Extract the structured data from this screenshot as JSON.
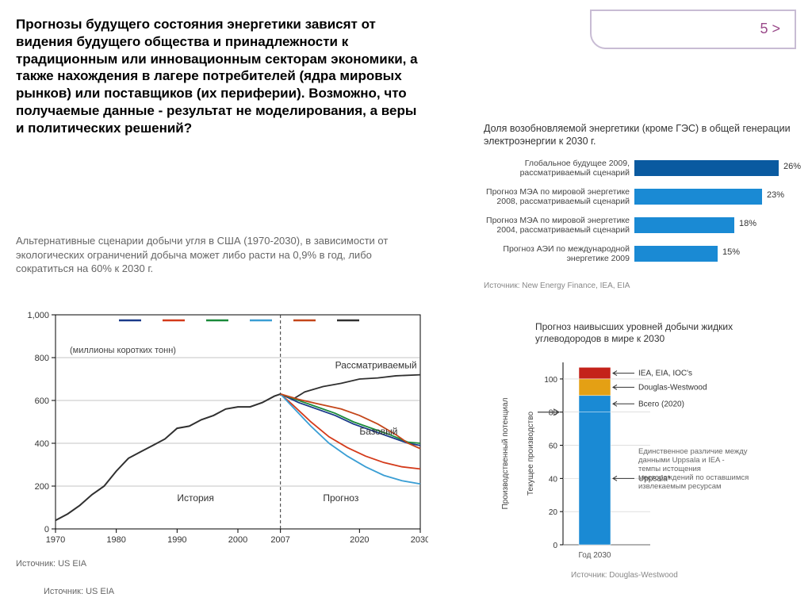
{
  "page_num": "5 >",
  "main_heading": "Прогнозы будущего состояния энергетики зависят от видения будущего общества и принадлежности к традиционным или инновационным секторам экономики, а также нахождения в лагере потребителей (ядра мировых рынков) или поставщиков (их периферии). Возможно, что получаемые данные - результат не моделирования, а веры и политических решений?",
  "subheading": "Альтернативные сценарии добычи угля в США (1970-2030), в зависимости от экологических ограничений добыча может либо расти на 0,9% в год, либо сократиться на 60% к 2030 г.",
  "source1": "Источник: US EIA",
  "source2": "Источник: US EIA",
  "linechart": {
    "type": "line",
    "xlim": [
      1970,
      2030
    ],
    "ylim": [
      0,
      1000
    ],
    "xticks": [
      1970,
      1980,
      1990,
      2000,
      2007,
      2020,
      2030
    ],
    "yticks": [
      0,
      200,
      400,
      600,
      800,
      1000
    ],
    "divider_x": 2007,
    "y_unit_label": "(миллионы коротких тонн)",
    "annotations": {
      "history": "История",
      "forecast": "Прогноз",
      "considered": "Рассматриваемый",
      "base": "Базовый"
    },
    "legend_colors": [
      "#1a3a8a",
      "#d43a1a",
      "#1a8a3a",
      "#3a9ed4",
      "#c4461a",
      "#303030"
    ],
    "grid_color": "#888",
    "axis_color": "#000",
    "history_series": {
      "color": "#303030",
      "points": [
        [
          1970,
          40
        ],
        [
          1972,
          70
        ],
        [
          1974,
          110
        ],
        [
          1976,
          160
        ],
        [
          1978,
          200
        ],
        [
          1980,
          270
        ],
        [
          1982,
          330
        ],
        [
          1984,
          360
        ],
        [
          1986,
          390
        ],
        [
          1988,
          420
        ],
        [
          1990,
          470
        ],
        [
          1992,
          480
        ],
        [
          1994,
          510
        ],
        [
          1996,
          530
        ],
        [
          1998,
          560
        ],
        [
          2000,
          570
        ],
        [
          2002,
          570
        ],
        [
          2004,
          590
        ],
        [
          2006,
          620
        ],
        [
          2007,
          630
        ]
      ]
    },
    "forecast_series": [
      {
        "color": "#303030",
        "points": [
          [
            2007,
            630
          ],
          [
            2009,
            605
          ],
          [
            2011,
            640
          ],
          [
            2014,
            665
          ],
          [
            2017,
            680
          ],
          [
            2020,
            700
          ],
          [
            2023,
            705
          ],
          [
            2026,
            715
          ],
          [
            2030,
            720
          ]
        ]
      },
      {
        "color": "#1a3a8a",
        "points": [
          [
            2007,
            630
          ],
          [
            2010,
            590
          ],
          [
            2013,
            560
          ],
          [
            2016,
            530
          ],
          [
            2019,
            490
          ],
          [
            2022,
            460
          ],
          [
            2025,
            430
          ],
          [
            2028,
            400
          ],
          [
            2030,
            390
          ]
        ]
      },
      {
        "color": "#1a8a3a",
        "points": [
          [
            2007,
            630
          ],
          [
            2010,
            600
          ],
          [
            2013,
            570
          ],
          [
            2016,
            540
          ],
          [
            2019,
            500
          ],
          [
            2022,
            470
          ],
          [
            2025,
            440
          ],
          [
            2028,
            405
          ],
          [
            2030,
            400
          ]
        ]
      },
      {
        "color": "#d43a1a",
        "points": [
          [
            2007,
            630
          ],
          [
            2009,
            580
          ],
          [
            2012,
            500
          ],
          [
            2015,
            430
          ],
          [
            2018,
            380
          ],
          [
            2021,
            340
          ],
          [
            2024,
            310
          ],
          [
            2027,
            290
          ],
          [
            2030,
            280
          ]
        ]
      },
      {
        "color": "#3a9ed4",
        "points": [
          [
            2007,
            630
          ],
          [
            2009,
            570
          ],
          [
            2012,
            480
          ],
          [
            2015,
            400
          ],
          [
            2018,
            340
          ],
          [
            2021,
            290
          ],
          [
            2024,
            250
          ],
          [
            2027,
            225
          ],
          [
            2030,
            210
          ]
        ]
      },
      {
        "color": "#c4461a",
        "points": [
          [
            2007,
            630
          ],
          [
            2010,
            605
          ],
          [
            2013,
            585
          ],
          [
            2017,
            560
          ],
          [
            2020,
            530
          ],
          [
            2023,
            490
          ],
          [
            2026,
            440
          ],
          [
            2028,
            400
          ],
          [
            2030,
            375
          ]
        ]
      }
    ]
  },
  "barchart": {
    "title": "Доля возобновляемой энергетики (кроме ГЭС) в общей генерации электроэнергии к 2030 г.",
    "max": 30,
    "bars": [
      {
        "label": "Глобальное будущее 2009, рассматриваемый сценарий",
        "value": 26,
        "color": "#0a5aa0"
      },
      {
        "label": "Прогноз МЭА по мировой энергетике 2008, рассматриваемый сценарий",
        "value": 23,
        "color": "#1a8ad4"
      },
      {
        "label": "Прогноз МЭА по мировой энергетике 2004, рассматриваемый сценарий",
        "value": 18,
        "color": "#1a8ad4"
      },
      {
        "label": "Прогноз АЭИ по международной энергетике 2009",
        "value": 15,
        "color": "#1a8ad4"
      }
    ],
    "source": "Источник: New Energy Finance, IEA, EIA"
  },
  "stacked": {
    "title": "Прогноз наивысших уровней добычи жидких углеводородов в мире к 2030",
    "ylabel_left": "Производственный потенциал",
    "ylabel_right": "Текущее производство",
    "xlabel": "Год 2030",
    "ylim": [
      0,
      110
    ],
    "yticks": [
      0,
      20,
      40,
      60,
      80,
      100
    ],
    "segments": [
      {
        "label": "IEA, EIA, IOC's",
        "from": 100,
        "to": 107,
        "color": "#c4221a"
      },
      {
        "label": "Douglas-Westwood",
        "from": 90,
        "to": 100,
        "color": "#e4a014"
      },
      {
        "label": "Всего (2020)",
        "from": 80,
        "to": 90,
        "color": "#1a8ad4"
      },
      {
        "label": "Uppsala*",
        "from": 0,
        "to": 80,
        "color": "#1a8ad4"
      }
    ],
    "arrow_at": 80,
    "footnote": "Единственное различие между данными Uppsala и IEA - темпы истощения месторождений по оставшимся извлекаемым ресурсам",
    "source": "Источник: Douglas-Westwood"
  }
}
